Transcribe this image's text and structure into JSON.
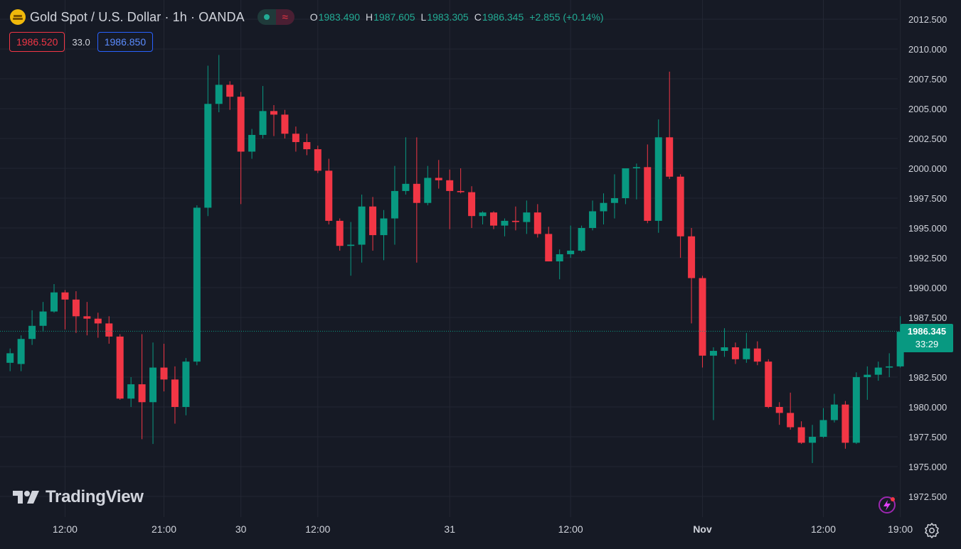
{
  "header": {
    "symbol_title": "Gold Spot / U.S. Dollar · 1h · OANDA",
    "icons": {
      "symbol": "gold-bars-icon",
      "live": "live-dot-icon",
      "wave": "wave-icon"
    },
    "ohlc": {
      "o_key": "O",
      "o_val": "1983.490",
      "h_key": "H",
      "h_val": "1987.605",
      "l_key": "L",
      "l_val": "1983.305",
      "c_key": "C",
      "c_val": "1986.345",
      "change": "+2.855 (+0.14%)"
    }
  },
  "quotes": {
    "sell": "1986.520",
    "spread": "33.0",
    "buy": "1986.850"
  },
  "price_tag": {
    "price": "1986.345",
    "countdown": "33:29"
  },
  "brand": {
    "name": "TradingView",
    "logo": "tradingview-logo-icon"
  },
  "controls": {
    "settings": "gear-icon",
    "flash": "lightning-icon"
  },
  "colors": {
    "background": "#161a25",
    "up": "#089981",
    "down": "#f23645",
    "grid": "#232733",
    "text": "#d1d4dc"
  },
  "chart_data": {
    "type": "candlestick",
    "ylim": [
      1971,
      2013.5
    ],
    "y_ticks": [
      "2012.500",
      "2010.000",
      "2007.500",
      "2005.000",
      "2002.500",
      "2000.000",
      "1997.500",
      "1995.000",
      "1992.500",
      "1990.000",
      "1987.500",
      "1982.500",
      "1980.000",
      "1977.500",
      "1975.000",
      "1972.500"
    ],
    "x_ticks": [
      {
        "label": "12:00",
        "index": 5
      },
      {
        "label": "21:00",
        "index": 14
      },
      {
        "label": "30",
        "index": 21
      },
      {
        "label": "12:00",
        "index": 28
      },
      {
        "label": "31",
        "index": 40
      },
      {
        "label": "12:00",
        "index": 51
      },
      {
        "label": "Nov",
        "index": 63
      },
      {
        "label": "12:00",
        "index": 74
      },
      {
        "label": "19:00",
        "index": 81
      }
    ],
    "last_price": 1986.345,
    "candles": [
      {
        "o": 1983.7,
        "h": 1984.9,
        "l": 1983.0,
        "c": 1984.5
      },
      {
        "o": 1983.6,
        "h": 1986.0,
        "l": 1983.0,
        "c": 1985.7
      },
      {
        "o": 1985.7,
        "h": 1988.1,
        "l": 1985.2,
        "c": 1986.8
      },
      {
        "o": 1986.8,
        "h": 1988.8,
        "l": 1986.3,
        "c": 1988.0
      },
      {
        "o": 1988.0,
        "h": 1990.3,
        "l": 1987.9,
        "c": 1989.6
      },
      {
        "o": 1989.6,
        "h": 1989.8,
        "l": 1986.5,
        "c": 1989.0
      },
      {
        "o": 1989.0,
        "h": 1989.7,
        "l": 1986.2,
        "c": 1987.6
      },
      {
        "o": 1987.6,
        "h": 1988.8,
        "l": 1986.0,
        "c": 1987.4
      },
      {
        "o": 1987.4,
        "h": 1987.9,
        "l": 1985.8,
        "c": 1987.0
      },
      {
        "o": 1987.0,
        "h": 1987.6,
        "l": 1985.3,
        "c": 1985.9
      },
      {
        "o": 1985.9,
        "h": 1986.1,
        "l": 1980.6,
        "c": 1980.7
      },
      {
        "o": 1980.7,
        "h": 1982.5,
        "l": 1980.0,
        "c": 1981.9
      },
      {
        "o": 1981.9,
        "h": 1986.1,
        "l": 1977.3,
        "c": 1980.4
      },
      {
        "o": 1980.4,
        "h": 1985.4,
        "l": 1976.9,
        "c": 1983.3
      },
      {
        "o": 1983.3,
        "h": 1985.3,
        "l": 1981.3,
        "c": 1982.3
      },
      {
        "o": 1982.3,
        "h": 1983.4,
        "l": 1978.6,
        "c": 1980.0
      },
      {
        "o": 1980.0,
        "h": 1984.1,
        "l": 1979.3,
        "c": 1983.8
      },
      {
        "o": 1983.8,
        "h": 1996.9,
        "l": 1983.5,
        "c": 1996.7
      },
      {
        "o": 1996.7,
        "h": 2008.6,
        "l": 1996.0,
        "c": 2005.4
      },
      {
        "o": 2005.4,
        "h": 2009.5,
        "l": 2004.7,
        "c": 2007.0
      },
      {
        "o": 2007.0,
        "h": 2007.3,
        "l": 2004.9,
        "c": 2006.0
      },
      {
        "o": 2006.0,
        "h": 2006.4,
        "l": 1997.0,
        "c": 2001.4
      },
      {
        "o": 2001.4,
        "h": 2003.3,
        "l": 2000.8,
        "c": 2002.8
      },
      {
        "o": 2002.8,
        "h": 2006.9,
        "l": 2002.5,
        "c": 2004.8
      },
      {
        "o": 2004.8,
        "h": 2005.3,
        "l": 2002.7,
        "c": 2004.5
      },
      {
        "o": 2004.5,
        "h": 2004.9,
        "l": 2002.5,
        "c": 2002.9
      },
      {
        "o": 2002.9,
        "h": 2003.5,
        "l": 2001.4,
        "c": 2002.2
      },
      {
        "o": 2002.2,
        "h": 2002.9,
        "l": 2001.1,
        "c": 2001.6
      },
      {
        "o": 2001.6,
        "h": 2001.9,
        "l": 1999.6,
        "c": 1999.8
      },
      {
        "o": 1999.8,
        "h": 2000.8,
        "l": 1995.3,
        "c": 1995.6
      },
      {
        "o": 1995.6,
        "h": 1995.8,
        "l": 1993.1,
        "c": 1993.5
      },
      {
        "o": 1993.5,
        "h": 1995.5,
        "l": 1991.0,
        "c": 1993.6
      },
      {
        "o": 1993.6,
        "h": 1997.8,
        "l": 1992.1,
        "c": 1996.8
      },
      {
        "o": 1996.8,
        "h": 1997.6,
        "l": 1993.1,
        "c": 1994.4
      },
      {
        "o": 1994.4,
        "h": 1996.5,
        "l": 1992.3,
        "c": 1995.8
      },
      {
        "o": 1995.8,
        "h": 2000.2,
        "l": 1993.6,
        "c": 1998.1
      },
      {
        "o": 1998.1,
        "h": 2002.6,
        "l": 1997.8,
        "c": 1998.7
      },
      {
        "o": 1998.7,
        "h": 2002.6,
        "l": 1992.1,
        "c": 1997.1
      },
      {
        "o": 1997.1,
        "h": 2000.2,
        "l": 1996.9,
        "c": 1999.2
      },
      {
        "o": 1999.2,
        "h": 2000.7,
        "l": 1998.3,
        "c": 1999.0
      },
      {
        "o": 1999.0,
        "h": 1999.9,
        "l": 1994.9,
        "c": 1998.1
      },
      {
        "o": 1998.1,
        "h": 2000.0,
        "l": 1997.9,
        "c": 1998.0
      },
      {
        "o": 1998.0,
        "h": 1998.5,
        "l": 1995.0,
        "c": 1996.0
      },
      {
        "o": 1996.0,
        "h": 1996.4,
        "l": 1995.3,
        "c": 1996.3
      },
      {
        "o": 1996.3,
        "h": 1996.4,
        "l": 1994.9,
        "c": 1995.2
      },
      {
        "o": 1995.2,
        "h": 1995.8,
        "l": 1994.3,
        "c": 1995.6
      },
      {
        "o": 1995.6,
        "h": 1996.8,
        "l": 1994.8,
        "c": 1995.5
      },
      {
        "o": 1995.5,
        "h": 1997.3,
        "l": 1994.5,
        "c": 1996.3
      },
      {
        "o": 1996.3,
        "h": 1997.0,
        "l": 1994.2,
        "c": 1994.5
      },
      {
        "o": 1994.5,
        "h": 1995.1,
        "l": 1992.2,
        "c": 1992.2
      },
      {
        "o": 1992.2,
        "h": 1993.2,
        "l": 1990.7,
        "c": 1992.8
      },
      {
        "o": 1992.8,
        "h": 1995.2,
        "l": 1992.5,
        "c": 1993.1
      },
      {
        "o": 1993.1,
        "h": 1995.2,
        "l": 1993.0,
        "c": 1995.0
      },
      {
        "o": 1995.0,
        "h": 1997.3,
        "l": 1994.8,
        "c": 1996.4
      },
      {
        "o": 1996.4,
        "h": 1997.9,
        "l": 1995.3,
        "c": 1997.1
      },
      {
        "o": 1997.1,
        "h": 1999.5,
        "l": 1995.8,
        "c": 1997.5
      },
      {
        "o": 1997.5,
        "h": 2000.0,
        "l": 1997.0,
        "c": 2000.0
      },
      {
        "o": 2000.0,
        "h": 2000.4,
        "l": 1997.4,
        "c": 2000.1
      },
      {
        "o": 2000.1,
        "h": 2002.0,
        "l": 1995.4,
        "c": 1995.6
      },
      {
        "o": 1995.6,
        "h": 2004.1,
        "l": 1994.6,
        "c": 2002.6
      },
      {
        "o": 2002.6,
        "h": 2008.1,
        "l": 1999.1,
        "c": 1999.3
      },
      {
        "o": 1999.3,
        "h": 1999.5,
        "l": 1992.5,
        "c": 1994.3
      },
      {
        "o": 1994.3,
        "h": 1995.0,
        "l": 1987.0,
        "c": 1990.8
      },
      {
        "o": 1990.8,
        "h": 1991.0,
        "l": 1983.3,
        "c": 1984.3
      },
      {
        "o": 1984.3,
        "h": 1985.0,
        "l": 1978.9,
        "c": 1984.7
      },
      {
        "o": 1984.7,
        "h": 1986.6,
        "l": 1984.2,
        "c": 1985.0
      },
      {
        "o": 1985.0,
        "h": 1985.4,
        "l": 1983.6,
        "c": 1984.0
      },
      {
        "o": 1984.0,
        "h": 1986.2,
        "l": 1983.7,
        "c": 1984.9
      },
      {
        "o": 1984.9,
        "h": 1985.5,
        "l": 1983.5,
        "c": 1983.8
      },
      {
        "o": 1983.8,
        "h": 1984.0,
        "l": 1979.9,
        "c": 1980.0
      },
      {
        "o": 1980.0,
        "h": 1980.4,
        "l": 1978.5,
        "c": 1979.5
      },
      {
        "o": 1979.5,
        "h": 1981.2,
        "l": 1978.1,
        "c": 1978.3
      },
      {
        "o": 1978.3,
        "h": 1978.8,
        "l": 1976.9,
        "c": 1977.0
      },
      {
        "o": 1977.0,
        "h": 1978.5,
        "l": 1975.3,
        "c": 1977.5
      },
      {
        "o": 1977.5,
        "h": 1979.9,
        "l": 1977.4,
        "c": 1978.9
      },
      {
        "o": 1978.9,
        "h": 1981.1,
        "l": 1978.7,
        "c": 1980.2
      },
      {
        "o": 1980.2,
        "h": 1980.5,
        "l": 1976.5,
        "c": 1977.0
      },
      {
        "o": 1977.0,
        "h": 1982.9,
        "l": 1976.9,
        "c": 1982.5
      },
      {
        "o": 1982.5,
        "h": 1983.4,
        "l": 1980.6,
        "c": 1982.7
      },
      {
        "o": 1982.7,
        "h": 1983.8,
        "l": 1982.2,
        "c": 1983.3
      },
      {
        "o": 1983.3,
        "h": 1984.5,
        "l": 1982.5,
        "c": 1983.4
      },
      {
        "o": 1983.4,
        "h": 1987.6,
        "l": 1983.3,
        "c": 1986.3
      }
    ]
  }
}
